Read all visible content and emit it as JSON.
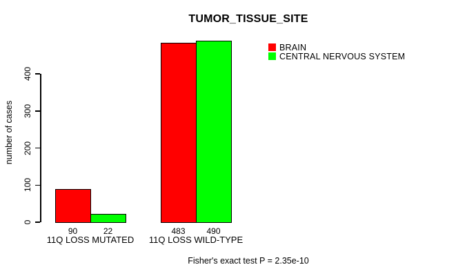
{
  "title": "TUMOR_TISSUE_SITE",
  "caption": "Fisher's exact test P = 2.35e-10",
  "chart_data": {
    "type": "bar",
    "title": "TUMOR_TISSUE_SITE",
    "groups": [
      "11Q LOSS MUTATED",
      "11Q LOSS WILD-TYPE"
    ],
    "series": [
      {
        "name": "BRAIN",
        "color": "#ff0000",
        "values": [
          90,
          483
        ]
      },
      {
        "name": "CENTRAL NERVOUS SYSTEM",
        "color": "#00ff00",
        "values": [
          22,
          490
        ]
      }
    ],
    "bar_value_labels": [
      [
        90,
        483
      ],
      [
        22,
        490
      ]
    ],
    "xlabel": "",
    "ylabel": "number of cases",
    "yticks": [
      0,
      100,
      200,
      300,
      400
    ],
    "ylim": [
      0,
      400
    ],
    "grid": false,
    "legend_position": "top-right",
    "annotation": "Fisher's exact test P = 2.35e-10"
  }
}
